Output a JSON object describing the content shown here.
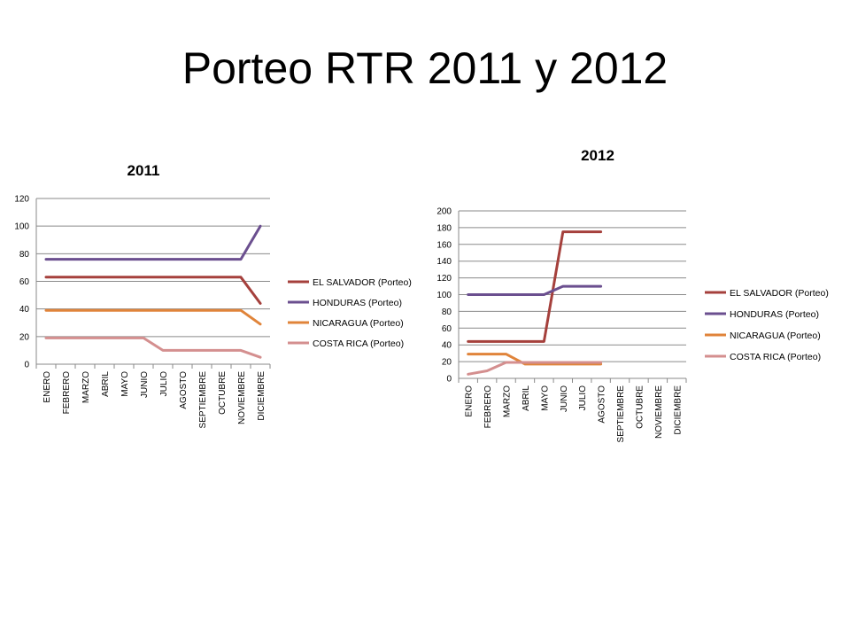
{
  "slide": {
    "title": "Porteo RTR 2011 y 2012"
  },
  "chart_data": [
    {
      "type": "line",
      "title": "2011",
      "xlabel": "",
      "ylabel": "",
      "ylim": [
        0,
        120
      ],
      "yticks": [
        0,
        20,
        40,
        60,
        80,
        100,
        120
      ],
      "grid": true,
      "legend_position": "right",
      "categories": [
        "ENERO",
        "FEBRERO",
        "MARZO",
        "ABRIL",
        "MAYO",
        "JUNIO",
        "JULIO",
        "AGOSTO",
        "SEPTIEMBRE",
        "OCTUBRE",
        "NOVIEMBRE",
        "DICIEMBRE"
      ],
      "series": [
        {
          "name": "EL SALVADOR (Porteo)",
          "color": "#a5403c",
          "values": [
            63,
            63,
            63,
            63,
            63,
            63,
            63,
            63,
            63,
            63,
            63,
            44
          ]
        },
        {
          "name": "HONDURAS (Porteo)",
          "color": "#6b4f8f",
          "values": [
            76,
            76,
            76,
            76,
            76,
            76,
            76,
            76,
            76,
            76,
            76,
            100
          ]
        },
        {
          "name": "NICARAGUA (Porteo)",
          "color": "#e0843a",
          "values": [
            39,
            39,
            39,
            39,
            39,
            39,
            39,
            39,
            39,
            39,
            39,
            29
          ]
        },
        {
          "name": "COSTA RICA (Porteo)",
          "color": "#d48f8f",
          "values": [
            19,
            19,
            19,
            19,
            19,
            19,
            10,
            10,
            10,
            10,
            10,
            5
          ]
        }
      ]
    },
    {
      "type": "line",
      "title": "2012",
      "xlabel": "",
      "ylabel": "",
      "ylim": [
        0,
        200
      ],
      "yticks": [
        0,
        20,
        40,
        60,
        80,
        100,
        120,
        140,
        160,
        180,
        200
      ],
      "grid": true,
      "legend_position": "right",
      "categories": [
        "ENERO",
        "FEBRERO",
        "MARZO",
        "ABRIL",
        "MAYO",
        "JUNIO",
        "JULIO",
        "AGOSTO",
        "SEPTIEMBRE",
        "OCTUBRE",
        "NOVIEMBRE",
        "DICIEMBRE"
      ],
      "series": [
        {
          "name": "EL SALVADOR (Porteo)",
          "color": "#a5403c",
          "values": [
            44,
            44,
            44,
            44,
            44,
            175,
            175,
            175,
            null,
            null,
            null,
            null
          ]
        },
        {
          "name": "HONDURAS (Porteo)",
          "color": "#6b4f8f",
          "values": [
            100,
            100,
            100,
            100,
            100,
            110,
            110,
            110,
            null,
            null,
            null,
            null
          ]
        },
        {
          "name": "NICARAGUA (Porteo)",
          "color": "#e0843a",
          "values": [
            29,
            29,
            29,
            17,
            17,
            17,
            17,
            17,
            null,
            null,
            null,
            null
          ]
        },
        {
          "name": "COSTA RICA (Porteo)",
          "color": "#d48f8f",
          "values": [
            5,
            9,
            19,
            19,
            19,
            19,
            19,
            19,
            null,
            null,
            null,
            null
          ]
        }
      ]
    }
  ]
}
